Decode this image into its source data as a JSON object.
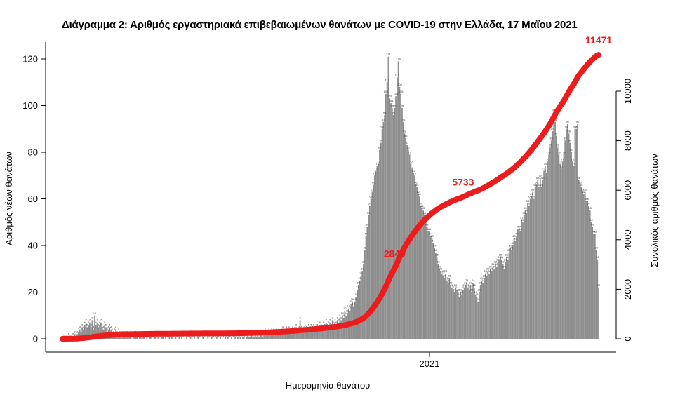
{
  "title": "Διάγραμμα 2: Αριθμός εργαστηριακά επιβεβαιωμένων θανάτων με COVID-19 στην Ελλάδα, 17 Μαΐου 2021",
  "colors": {
    "bars": "#8e8e8e",
    "bar_labels": "#3d3d3d",
    "cumulative_line": "#ec1c1c",
    "annotation_text": "#ec1c1c",
    "axis_text": "#000000"
  },
  "chart_data": {
    "type": "combo",
    "grid": false,
    "legend": false,
    "x_axis": {
      "label": "Ημερομηνία θανάτου",
      "ticks": [
        {
          "label": "2021",
          "day_index": 295
        }
      ],
      "start_date": "2020-03-12",
      "end_date": "2021-05-17"
    },
    "left_axis": {
      "label": "Αριθμός νέων θανάτων",
      "ticks": [
        0,
        20,
        40,
        60,
        80,
        100,
        120
      ],
      "range": [
        0,
        120
      ]
    },
    "right_axis": {
      "label": "Συνολικός αριθμός θανάτων",
      "ticks": [
        0,
        2000,
        4000,
        6000,
        8000,
        10000
      ],
      "range": [
        0,
        10000
      ]
    },
    "series": [
      {
        "name": "daily_deaths",
        "type": "bar",
        "color": "#8e8e8e",
        "values": [
          1,
          0,
          0,
          0,
          0,
          1,
          0,
          0,
          1,
          1,
          2,
          1,
          2,
          3,
          4,
          3,
          5,
          4,
          6,
          7,
          5,
          6,
          7,
          5,
          8,
          4,
          10,
          6,
          7,
          5,
          6,
          7,
          5,
          4,
          6,
          5,
          3,
          4,
          5,
          4,
          3,
          2,
          3,
          4,
          2,
          3,
          2,
          1,
          2,
          2,
          2,
          1,
          2,
          1,
          1,
          2,
          0,
          1,
          1,
          2,
          1,
          0,
          1,
          1,
          0,
          1,
          2,
          0,
          1,
          0,
          1,
          1,
          0,
          0,
          1,
          1,
          0,
          1,
          0,
          0,
          1,
          1,
          0,
          1,
          0,
          0,
          1,
          0,
          1,
          0,
          0,
          1,
          0,
          0,
          1,
          0,
          1,
          0,
          0,
          0,
          1,
          0,
          0,
          1,
          0,
          0,
          1,
          0,
          0,
          1,
          0,
          0,
          0,
          1,
          0,
          0,
          0,
          1,
          0,
          0,
          1,
          0,
          0,
          0,
          1,
          0,
          0,
          1,
          0,
          0,
          0,
          1,
          0,
          1,
          0,
          0,
          1,
          0,
          0,
          1,
          0,
          1,
          0,
          1,
          0,
          1,
          1,
          0,
          1,
          2,
          1,
          1,
          2,
          1,
          1,
          2,
          1,
          2,
          1,
          2,
          2,
          1,
          2,
          3,
          2,
          2,
          3,
          2,
          3,
          2,
          3,
          2,
          3,
          2,
          3,
          2,
          3,
          4,
          3,
          2,
          4,
          3,
          4,
          3,
          2,
          4,
          3,
          4,
          5,
          3,
          4,
          8,
          4,
          3,
          4,
          5,
          4,
          3,
          5,
          4,
          5,
          4,
          5,
          4,
          3,
          5,
          4,
          6,
          5,
          4,
          6,
          5,
          7,
          5,
          6,
          7,
          5,
          8,
          6,
          7,
          6,
          8,
          7,
          9,
          8,
          10,
          9,
          12,
          10,
          11,
          13,
          12,
          15,
          16,
          14,
          16,
          18,
          21,
          23,
          25,
          27,
          29,
          32,
          38,
          44,
          48,
          53,
          57,
          60,
          63,
          66,
          70,
          72,
          74,
          75,
          81,
          84,
          90,
          93,
          96,
          105,
          110,
          121,
          103,
          101,
          99,
          96,
          99,
          104,
          112,
          119,
          108,
          105,
          99,
          93,
          88,
          86,
          83,
          81,
          79,
          75,
          73,
          71,
          70,
          66,
          65,
          62,
          61,
          57,
          56,
          55,
          53,
          52,
          48,
          46,
          46,
          44,
          43,
          41,
          39,
          37,
          35,
          32,
          30,
          29,
          28,
          27,
          26,
          28,
          25,
          24,
          26,
          23,
          22,
          21,
          20,
          22,
          21,
          20,
          18,
          20,
          19,
          21,
          22,
          23,
          24,
          22,
          21,
          23,
          20,
          24,
          22,
          19,
          18,
          16,
          20,
          23,
          25,
          24,
          26,
          28,
          27,
          29,
          28,
          30,
          29,
          31,
          30,
          32,
          31,
          33,
          34,
          35,
          34,
          32,
          30,
          33,
          35,
          34,
          37,
          39,
          38,
          40,
          43,
          42,
          44,
          47,
          47,
          46,
          51,
          50,
          53,
          55,
          54,
          58,
          57,
          60,
          61,
          63,
          60,
          65,
          66,
          68,
          65,
          69,
          65,
          68,
          72,
          74,
          71,
          76,
          79,
          82,
          85,
          89,
          97,
          93,
          87,
          82,
          79,
          75,
          73,
          76,
          79,
          85,
          90,
          92,
          88,
          84,
          80,
          76,
          74,
          90,
          90,
          92,
          68,
          66,
          65,
          63,
          62,
          63,
          59,
          59,
          57,
          55,
          50,
          48,
          45,
          45,
          38,
          34,
          22
        ]
      },
      {
        "name": "cumulative_deaths",
        "type": "line",
        "color": "#ec1c1c",
        "final_value": 11471
      }
    ],
    "annotations": [
      {
        "label": "2840",
        "day_index": 267
      },
      {
        "label": "5733",
        "day_index": 322
      },
      {
        "label": "11471",
        "day_index": 431
      }
    ]
  }
}
